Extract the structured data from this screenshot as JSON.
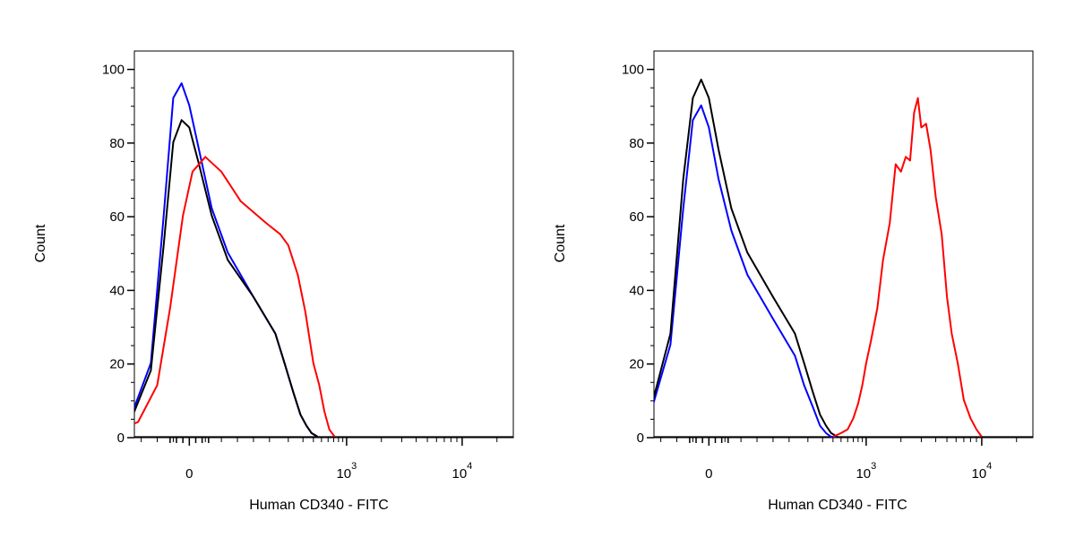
{
  "chart_data": [
    {
      "type": "line",
      "panel": "left",
      "title": "",
      "xlabel": "Human CD340 - FITC",
      "ylabel": "Count",
      "xscale": "biexponential",
      "ylim": [
        0,
        105
      ],
      "y_ticks": [
        0,
        20,
        40,
        60,
        80,
        100
      ],
      "x_tick_labels": [
        {
          "base": "0",
          "exp": ""
        },
        {
          "base": "10",
          "exp": "3"
        },
        {
          "base": "10",
          "exp": "4"
        }
      ],
      "grid": false,
      "legend": "none",
      "series": [
        {
          "color": "#0000ff",
          "x": [
            -180,
            -120,
            -90,
            -60,
            -40,
            -25,
            -12,
            0,
            15,
            35,
            60,
            100,
            140,
            180,
            230,
            280,
            330,
            380,
            450
          ],
          "y": [
            0,
            2,
            6,
            20,
            60,
            92,
            96,
            90,
            78,
            62,
            50,
            38,
            28,
            20,
            12,
            6,
            3,
            1,
            0
          ]
        },
        {
          "color": "#000000",
          "x": [
            -180,
            -120,
            -90,
            -60,
            -40,
            -25,
            -12,
            0,
            15,
            35,
            60,
            100,
            140,
            180,
            230,
            280,
            330,
            380,
            450
          ],
          "y": [
            0,
            2,
            5,
            18,
            52,
            80,
            86,
            84,
            74,
            60,
            48,
            38,
            28,
            20,
            12,
            6,
            3,
            1,
            0
          ]
        },
        {
          "color": "#ff0000",
          "x": [
            -180,
            -120,
            -80,
            -50,
            -30,
            -10,
            5,
            25,
            50,
            80,
            120,
            160,
            200,
            260,
            320,
            400,
            470,
            540,
            620,
            720
          ],
          "y": [
            0,
            1,
            4,
            14,
            35,
            60,
            72,
            76,
            72,
            64,
            58,
            55,
            52,
            44,
            34,
            20,
            14,
            7,
            2,
            0
          ]
        }
      ]
    },
    {
      "type": "line",
      "panel": "right",
      "title": "",
      "xlabel": "Human CD340 - FITC",
      "ylabel": "Count",
      "xscale": "biexponential",
      "ylim": [
        0,
        105
      ],
      "y_ticks": [
        0,
        20,
        40,
        60,
        80,
        100
      ],
      "x_tick_labels": [
        {
          "base": "0",
          "exp": ""
        },
        {
          "base": "10",
          "exp": "3"
        },
        {
          "base": "10",
          "exp": "4"
        }
      ],
      "grid": false,
      "legend": "none",
      "series": [
        {
          "color": "#0000ff",
          "x": [
            -180,
            -120,
            -90,
            -60,
            -40,
            -25,
            -12,
            0,
            15,
            35,
            60,
            100,
            140,
            180,
            230,
            280,
            330,
            380,
            450
          ],
          "y": [
            0,
            2,
            7,
            25,
            62,
            86,
            90,
            84,
            70,
            56,
            44,
            32,
            22,
            14,
            8,
            3,
            1,
            0,
            0
          ]
        },
        {
          "color": "#000000",
          "x": [
            -180,
            -120,
            -90,
            -60,
            -40,
            -25,
            -12,
            0,
            15,
            35,
            60,
            100,
            140,
            180,
            230,
            280,
            330,
            380,
            450
          ],
          "y": [
            0,
            2,
            8,
            28,
            70,
            92,
            97,
            92,
            78,
            62,
            50,
            38,
            28,
            20,
            12,
            6,
            3,
            1,
            0
          ]
        },
        {
          "color": "#ff0000",
          "x": [
            400,
            500,
            600,
            700,
            800,
            900,
            1000,
            1100,
            1250,
            1400,
            1600,
            1800,
            2000,
            2200,
            2400,
            2600,
            2800,
            3000,
            3300,
            3600,
            4000,
            4500,
            5000,
            5500,
            6200,
            7000,
            8000,
            9000,
            10000
          ],
          "y": [
            0,
            1,
            2,
            5,
            9,
            14,
            20,
            26,
            35,
            48,
            58,
            74,
            72,
            76,
            75,
            88,
            92,
            84,
            85,
            78,
            65,
            55,
            38,
            28,
            20,
            10,
            5,
            2,
            0
          ]
        }
      ]
    }
  ]
}
